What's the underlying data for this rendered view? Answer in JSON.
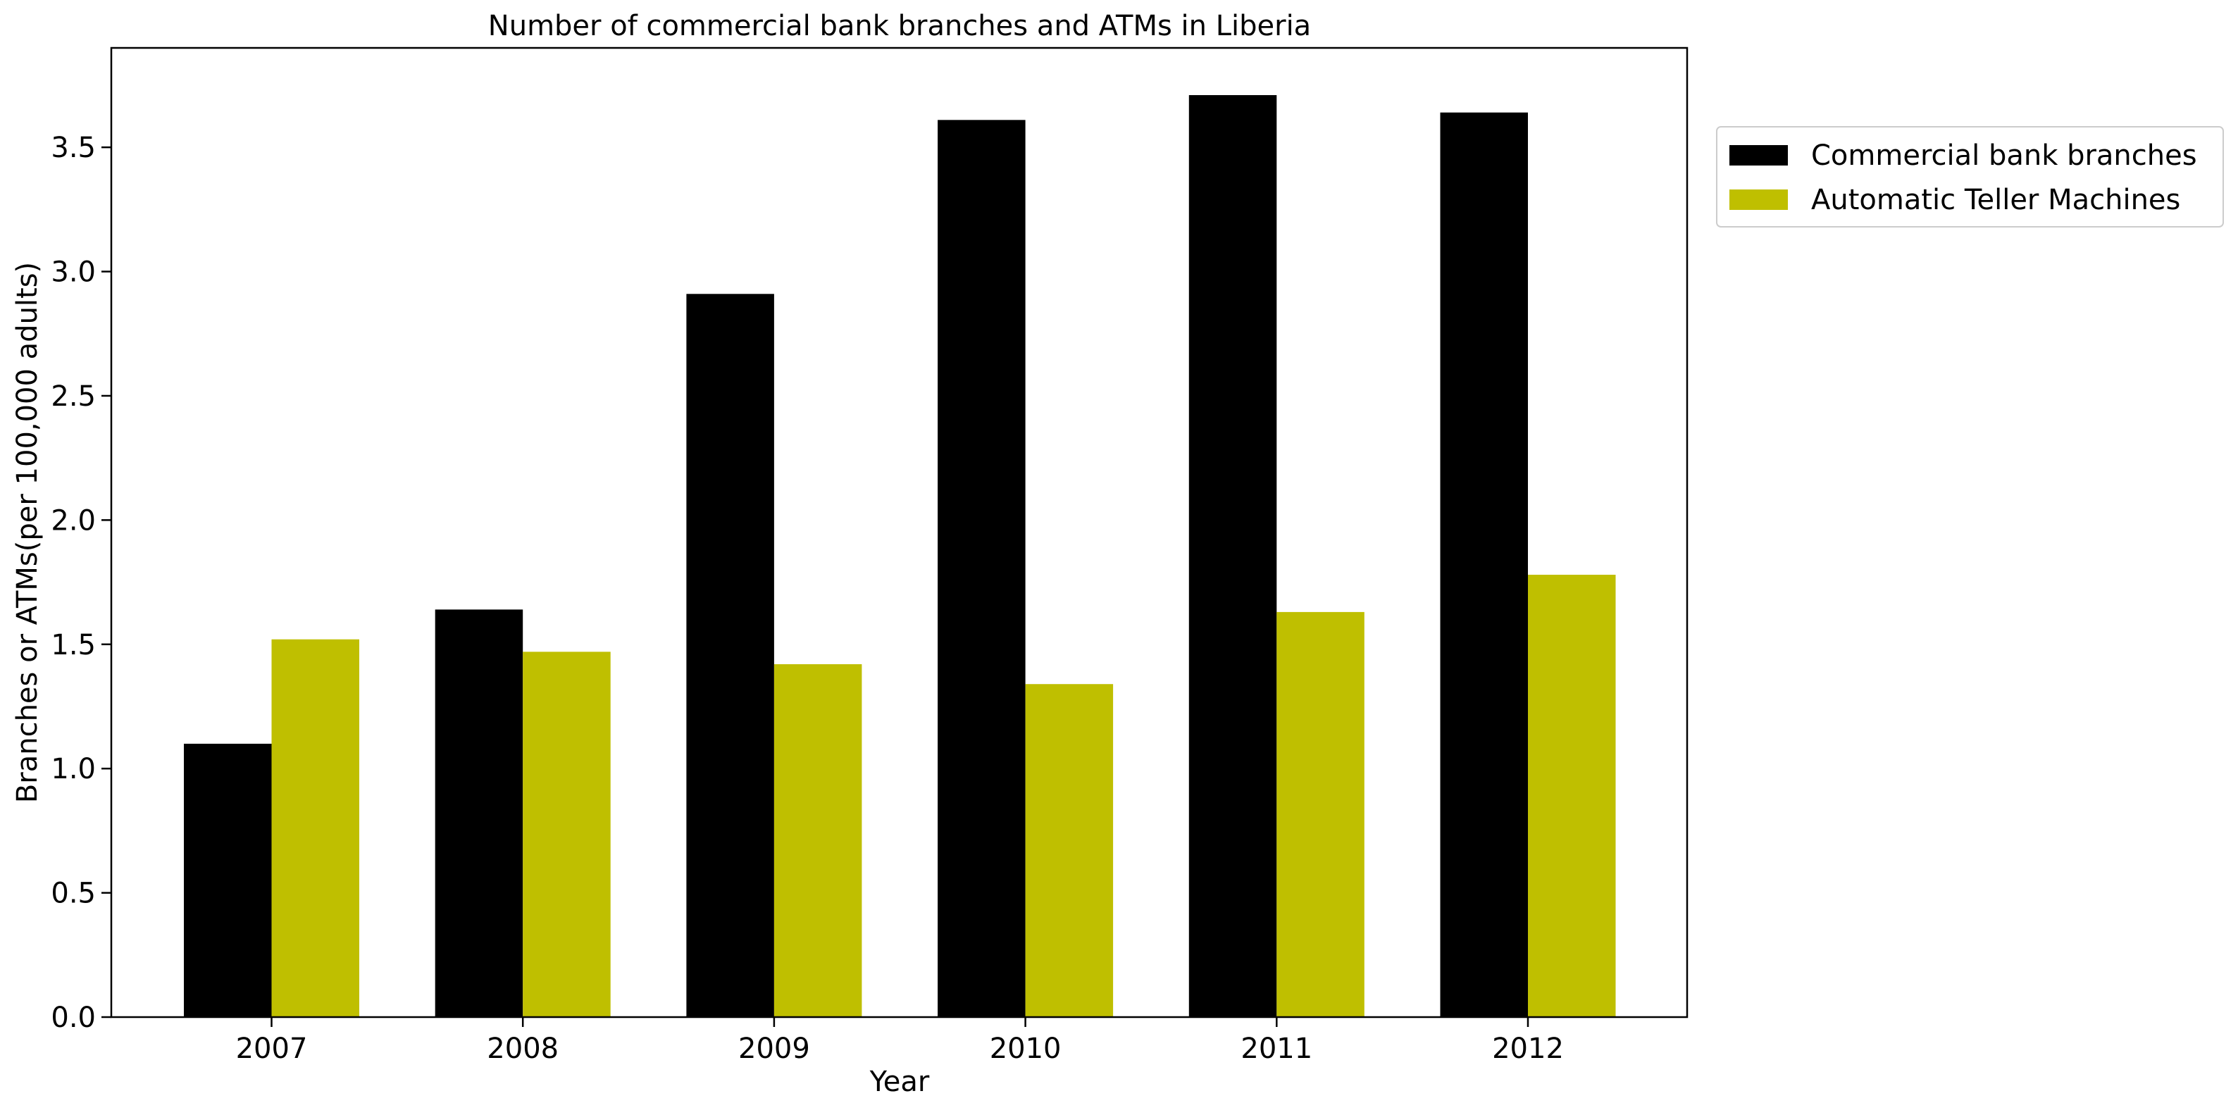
{
  "chart_data": {
    "type": "bar",
    "title": "Number of commercial bank branches and ATMs in Liberia",
    "xlabel": "Year",
    "ylabel": "Branches or ATMs(per 100,000 adults)",
    "categories": [
      "2007",
      "2008",
      "2009",
      "2010",
      "2011",
      "2012"
    ],
    "series": [
      {
        "name": "Commercial bank branches",
        "color": "#000000",
        "values": [
          1.1,
          1.64,
          2.91,
          3.61,
          3.71,
          3.64
        ]
      },
      {
        "name": "Automatic Teller Machines",
        "color": "#bfbf00",
        "values": [
          1.52,
          1.47,
          1.42,
          1.34,
          1.63,
          1.78
        ]
      }
    ],
    "ylim": [
      0,
      3.9
    ],
    "yticks": [
      "0.0",
      "0.5",
      "1.0",
      "1.5",
      "2.0",
      "2.5",
      "3.0",
      "3.5"
    ],
    "grid": false,
    "legend_position": "outside-right-top"
  }
}
